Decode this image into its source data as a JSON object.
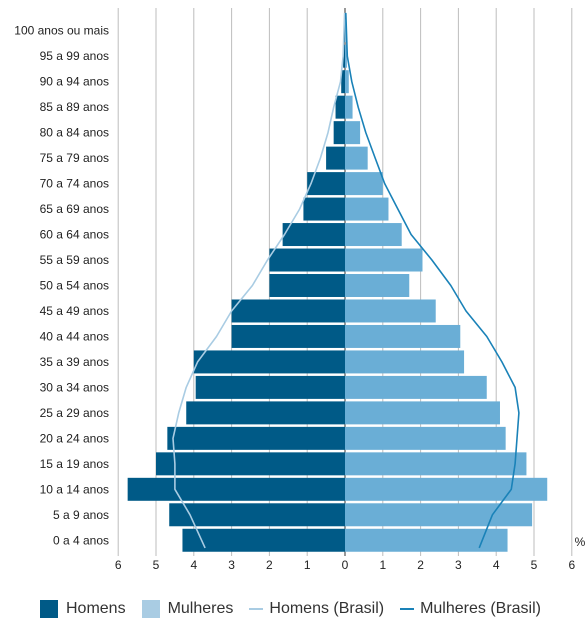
{
  "chart_data": {
    "type": "bar",
    "orientation": "horizontal-population-pyramid",
    "categories": [
      "0 a 4 anos",
      "5 a 9 anos",
      "10 a 14 anos",
      "15 a 19 anos",
      "20 a 24 anos",
      "25 a 29 anos",
      "30 a 34 anos",
      "35 a 39 anos",
      "40 a 44 anos",
      "45 a 49 anos",
      "50 a 54 anos",
      "55 a 59 anos",
      "60 a 64 anos",
      "65 a 69 anos",
      "70 a 74 anos",
      "75 a 79 anos",
      "80 a 84 anos",
      "85 a 89 anos",
      "90 a 94 anos",
      "95 a 99 anos",
      "100 anos ou mais"
    ],
    "series": [
      {
        "name": "Homens",
        "kind": "bar",
        "side": "left",
        "color": "#005a87",
        "values": [
          4.3,
          4.65,
          5.75,
          5.0,
          4.7,
          4.2,
          3.95,
          4.0,
          3.0,
          3.0,
          2.0,
          2.0,
          1.65,
          1.1,
          1.0,
          0.5,
          0.3,
          0.25,
          0.1,
          0.05,
          0.02
        ]
      },
      {
        "name": "Mulheres",
        "kind": "bar",
        "side": "right",
        "color": "#6aaed6",
        "values": [
          4.3,
          4.95,
          5.35,
          4.8,
          4.25,
          4.1,
          3.75,
          3.15,
          3.05,
          2.4,
          1.7,
          2.05,
          1.5,
          1.15,
          1.0,
          0.6,
          0.4,
          0.2,
          0.1,
          0.05,
          0.02
        ]
      },
      {
        "name": "Homens (Brasil)",
        "kind": "line",
        "side": "left",
        "color": "#a9cce3",
        "values": [
          3.7,
          4.1,
          4.5,
          4.5,
          4.55,
          4.4,
          4.2,
          3.9,
          3.4,
          3.0,
          2.45,
          2.05,
          1.6,
          1.2,
          0.9,
          0.65,
          0.45,
          0.3,
          0.12,
          0.05,
          0.01
        ]
      },
      {
        "name": "Mulheres (Brasil)",
        "kind": "line",
        "side": "right",
        "color": "#1a82b8",
        "values": [
          3.55,
          3.9,
          4.4,
          4.5,
          4.55,
          4.6,
          4.5,
          4.15,
          3.75,
          3.2,
          2.8,
          2.3,
          1.75,
          1.4,
          1.05,
          0.8,
          0.55,
          0.35,
          0.18,
          0.06,
          0.02
        ]
      }
    ],
    "x_ticks": [
      "6",
      "5",
      "4",
      "3",
      "2",
      "1",
      "0",
      "1",
      "2",
      "3",
      "4",
      "5",
      "6"
    ],
    "x_unit": "%",
    "xlim": [
      -6,
      6
    ],
    "grid": "vertical"
  }
}
